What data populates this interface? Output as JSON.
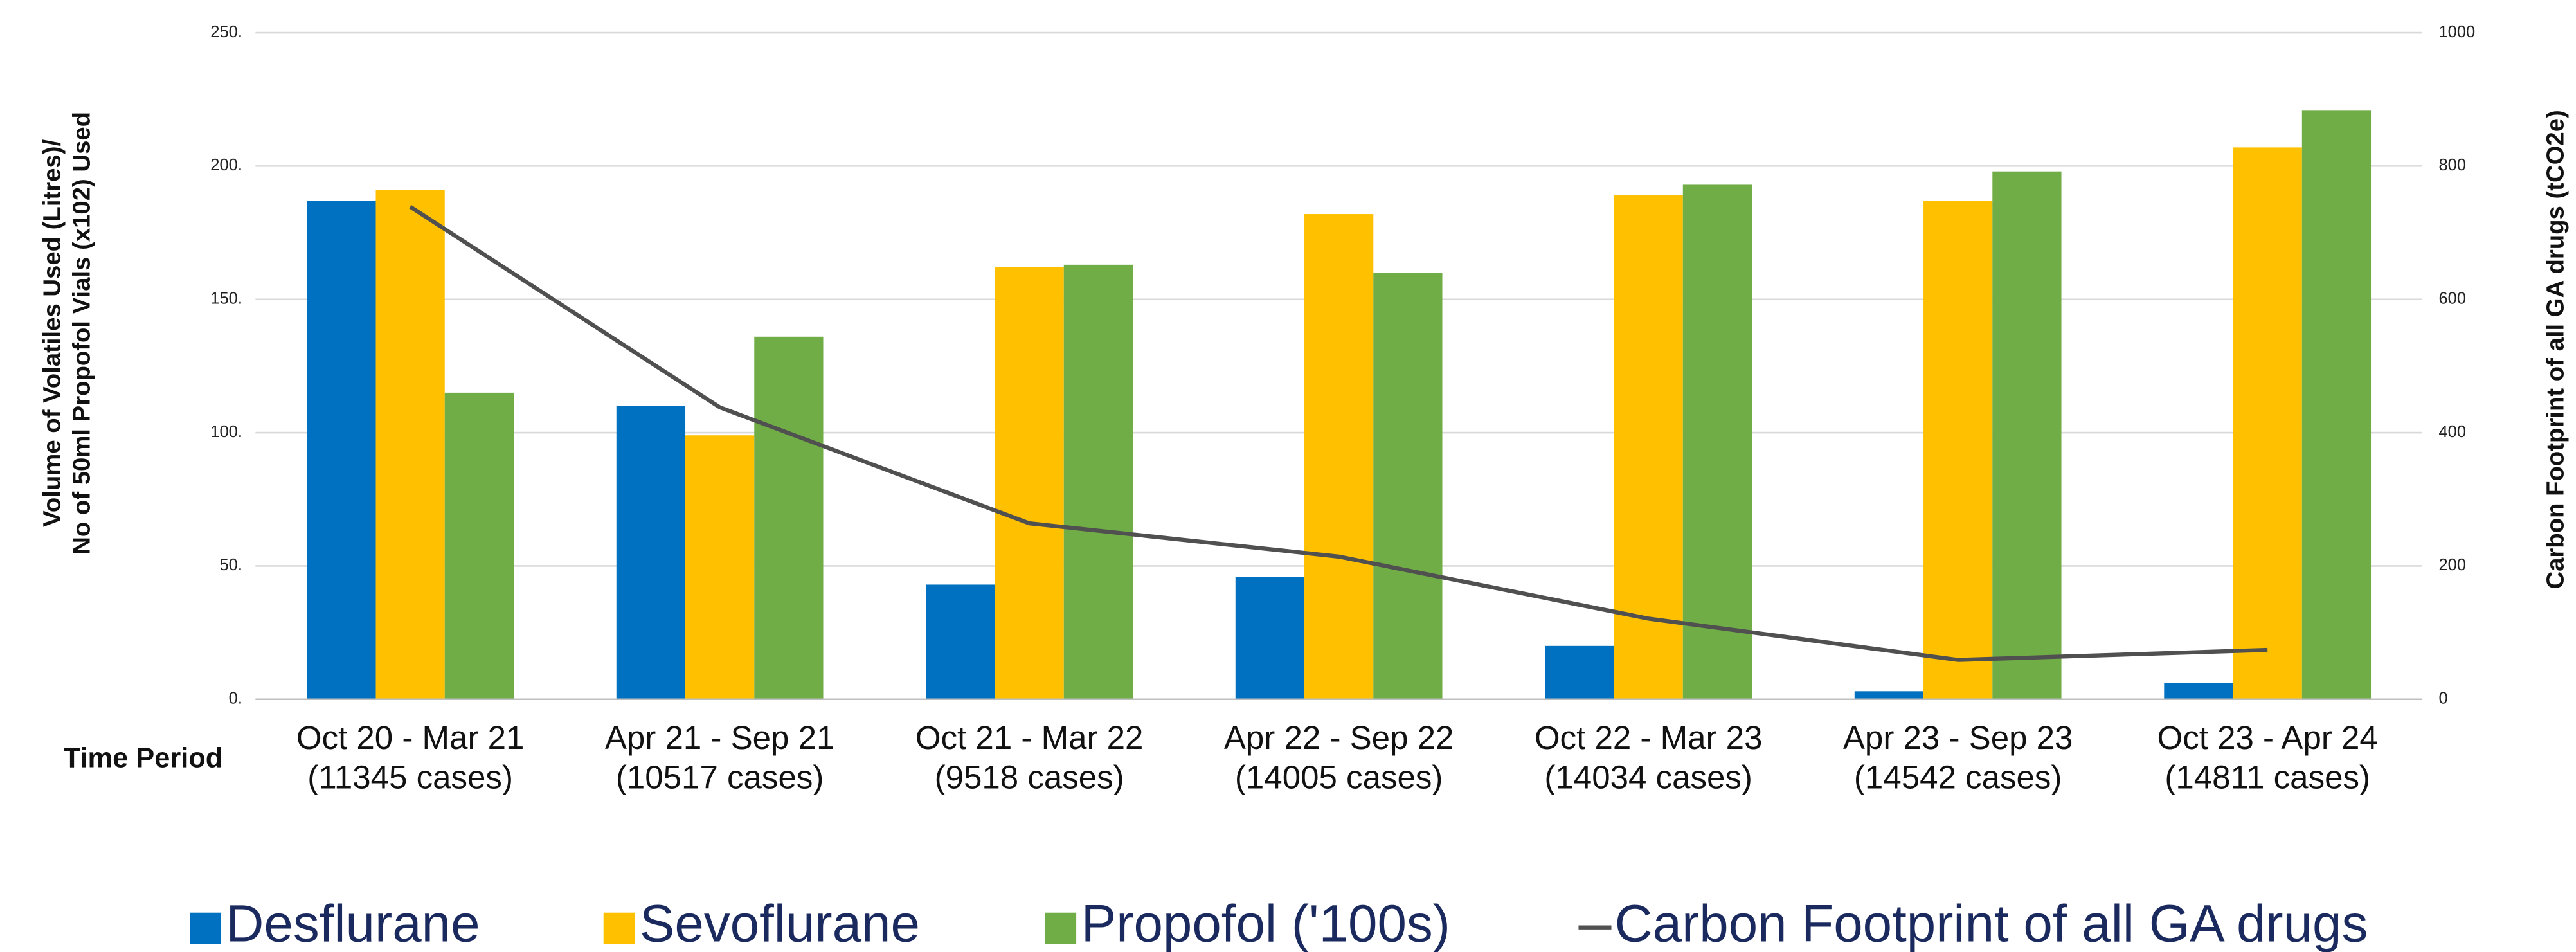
{
  "chart_data": {
    "type": "bar_line",
    "categories": [
      [
        "Oct 20 - Mar 21",
        "(11345 cases)"
      ],
      [
        "Apr 21 - Sep 21",
        "(10517 cases)"
      ],
      [
        "Oct 21 - Mar 22",
        "(9518 cases)"
      ],
      [
        "Apr 22 - Sep 22",
        "(14005 cases)"
      ],
      [
        "Oct 22 - Mar 23",
        "(14034 cases)"
      ],
      [
        "Apr 23 - Sep 23",
        "(14542 cases)"
      ],
      [
        "Oct 23 - Apr 24",
        "(14811 cases)"
      ]
    ],
    "x_label": "Time Period",
    "y_label": [
      "Volume of Volatiles Used (Litres)/",
      "No of 50ml Propofol Vials (x102) Used"
    ],
    "y2_label": "Carbon Footprint of all GA drugs (tCO2e)",
    "ylim": [
      0,
      250
    ],
    "yticks": [
      {
        "value": 0,
        "label": "0."
      },
      {
        "value": 50,
        "label": "50."
      },
      {
        "value": 100,
        "label": "100."
      },
      {
        "value": 150,
        "label": "150."
      },
      {
        "value": 200,
        "label": "200."
      },
      {
        "value": 250,
        "label": "250."
      }
    ],
    "y2lim": [
      0,
      1000
    ],
    "y2ticks": [
      0,
      200,
      400,
      600,
      800,
      1000
    ],
    "grid": true,
    "series": [
      {
        "name": "Desflurane",
        "color": "#0070c0",
        "kind": "bar",
        "values": [
          187,
          110,
          43,
          46,
          20,
          3,
          6
        ]
      },
      {
        "name": "Sevoflurane",
        "color": "#ffc000",
        "kind": "bar",
        "values": [
          191,
          99,
          162,
          182,
          189,
          187,
          207
        ]
      },
      {
        "name": "Propofol ('100s)",
        "color": "#70ad47",
        "kind": "bar",
        "values": [
          115,
          136,
          163,
          160,
          193,
          198,
          221
        ]
      },
      {
        "name": "Carbon Footprint of all GA drugs",
        "color": "#505050",
        "kind": "line",
        "axis": "y2",
        "values": [
          739,
          438,
          264,
          214,
          121,
          59,
          74
        ]
      }
    ]
  }
}
